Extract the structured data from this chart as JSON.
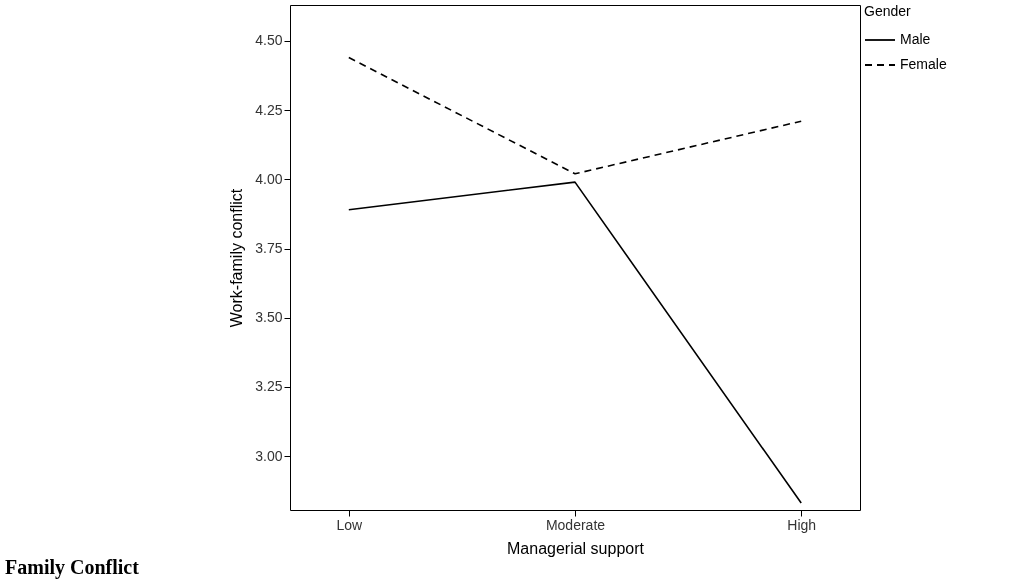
{
  "chart_data": {
    "type": "line",
    "xlabel": "Managerial support",
    "ylabel": "Work-family conflict",
    "legend_title": "Gender",
    "legend": "top right",
    "grid": false,
    "marker": "none",
    "categories": [
      "Low",
      "Moderate",
      "High"
    ],
    "ylim": [
      2.805,
      4.63
    ],
    "yticks": [
      {
        "value": 3.0,
        "label": "3.00"
      },
      {
        "value": 3.25,
        "label": "3.25"
      },
      {
        "value": 3.5,
        "label": "3.50"
      },
      {
        "value": 3.75,
        "label": "3.75"
      },
      {
        "value": 4.0,
        "label": "4.00"
      },
      {
        "value": 4.25,
        "label": "4.25"
      },
      {
        "value": 4.5,
        "label": "4.50"
      }
    ],
    "series": [
      {
        "name": "Male",
        "color": "#000000",
        "line_style": "solid",
        "values": [
          3.89,
          3.99,
          2.83
        ]
      },
      {
        "name": "Female",
        "color": "#000000",
        "line_style": "dashed",
        "values": [
          4.44,
          4.02,
          4.21
        ]
      }
    ],
    "annotations": [
      "Family Conflict"
    ]
  }
}
